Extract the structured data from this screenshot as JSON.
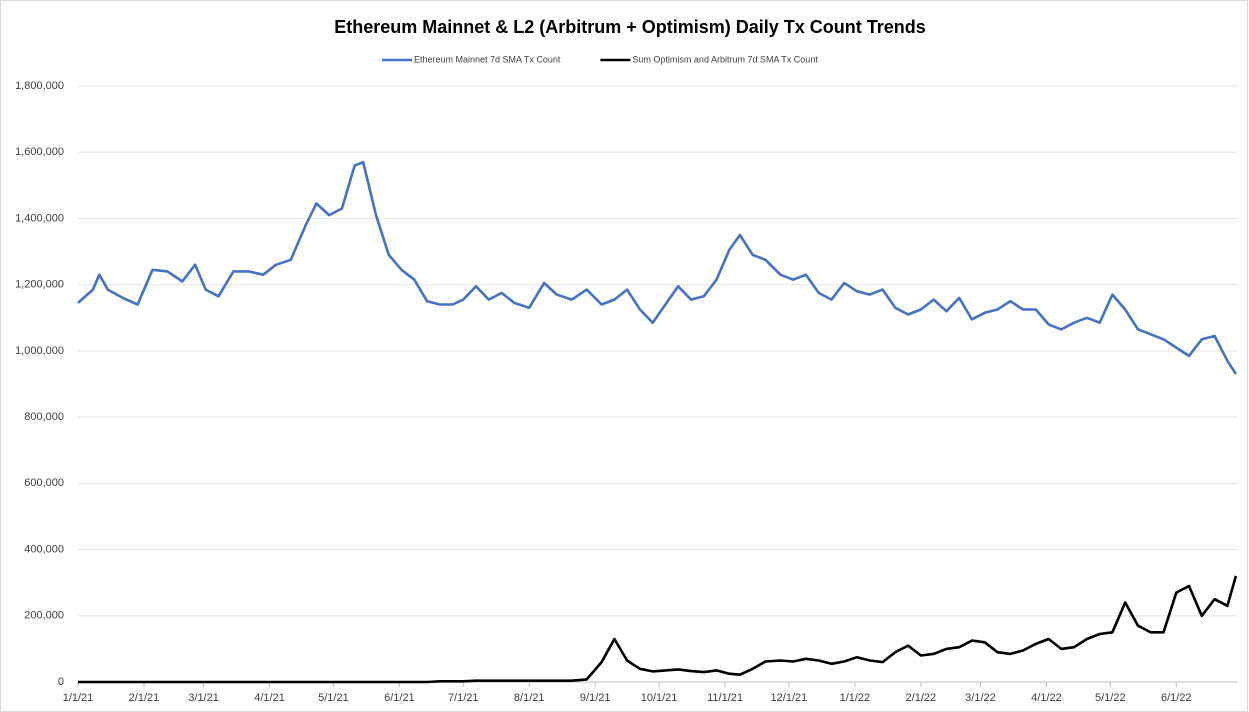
{
  "chart_data": {
    "type": "line",
    "title": "Ethereum Mainnet & L2 (Arbitrum + Optimism) Daily Tx Count Trends",
    "legend": "top",
    "grid": true,
    "xlim": [
      0,
      545
    ],
    "xticks": [
      {
        "value": 0,
        "label": "1/1/21"
      },
      {
        "value": 31,
        "label": "2/1/21"
      },
      {
        "value": 59,
        "label": "3/1/21"
      },
      {
        "value": 90,
        "label": "4/1/21"
      },
      {
        "value": 120,
        "label": "5/1/21"
      },
      {
        "value": 151,
        "label": "6/1/21"
      },
      {
        "value": 181,
        "label": "7/1/21"
      },
      {
        "value": 212,
        "label": "8/1/21"
      },
      {
        "value": 243,
        "label": "9/1/21"
      },
      {
        "value": 273,
        "label": "10/1/21"
      },
      {
        "value": 304,
        "label": "11/1/21"
      },
      {
        "value": 334,
        "label": "12/1/21"
      },
      {
        "value": 365,
        "label": "1/1/22"
      },
      {
        "value": 396,
        "label": "2/1/22"
      },
      {
        "value": 424,
        "label": "3/1/22"
      },
      {
        "value": 455,
        "label": "4/1/22"
      },
      {
        "value": 485,
        "label": "5/1/22"
      },
      {
        "value": 516,
        "label": "6/1/22"
      }
    ],
    "ylim": [
      0,
      1800000
    ],
    "yticks": [
      0,
      {
        "value": 200000,
        "label": "200,000"
      },
      {
        "value": 400000,
        "label": "400,000"
      },
      {
        "value": 600000,
        "label": "600,000"
      },
      {
        "value": 800000,
        "label": "800,000"
      },
      {
        "value": 1000000,
        "label": "1,000,000"
      },
      {
        "value": 1200000,
        "label": "1,200,000"
      },
      {
        "value": 1400000,
        "label": "1,400,000"
      },
      {
        "value": 1600000,
        "label": "1,600,000"
      },
      {
        "value": 1800000,
        "label": "1,800,000"
      }
    ],
    "x": [
      0,
      7,
      10,
      14,
      21,
      28,
      35,
      42,
      49,
      55,
      60,
      66,
      73,
      80,
      87,
      93,
      100,
      107,
      112,
      118,
      124,
      130,
      134,
      140,
      146,
      152,
      158,
      164,
      170,
      176,
      181,
      187,
      193,
      199,
      205,
      212,
      219,
      225,
      232,
      239,
      246,
      252,
      258,
      264,
      270,
      276,
      282,
      288,
      294,
      300,
      306,
      311,
      317,
      323,
      330,
      336,
      342,
      348,
      354,
      360,
      366,
      372,
      378,
      384,
      390,
      396,
      402,
      408,
      414,
      420,
      426,
      432,
      438,
      444,
      450,
      456,
      462,
      468,
      474,
      480,
      486,
      492,
      498,
      504,
      510,
      516,
      522,
      528,
      534,
      540,
      544
    ],
    "series": [
      {
        "name": "Ethereum Mainnet 7d SMA Tx Count",
        "color": "#4472c4",
        "values": [
          1145000,
          1185000,
          1230000,
          1185000,
          1160000,
          1140000,
          1245000,
          1240000,
          1210000,
          1260000,
          1185000,
          1165000,
          1240000,
          1240000,
          1230000,
          1260000,
          1275000,
          1380000,
          1445000,
          1410000,
          1430000,
          1560000,
          1570000,
          1410000,
          1290000,
          1245000,
          1215000,
          1150000,
          1140000,
          1140000,
          1155000,
          1195000,
          1155000,
          1175000,
          1145000,
          1130000,
          1205000,
          1170000,
          1155000,
          1185000,
          1140000,
          1155000,
          1185000,
          1125000,
          1085000,
          1140000,
          1195000,
          1155000,
          1165000,
          1215000,
          1305000,
          1350000,
          1290000,
          1275000,
          1230000,
          1215000,
          1230000,
          1175000,
          1155000,
          1205000,
          1180000,
          1170000,
          1185000,
          1130000,
          1110000,
          1125000,
          1155000,
          1120000,
          1160000,
          1095000,
          1115000,
          1125000,
          1150000,
          1125000,
          1125000,
          1080000,
          1065000,
          1085000,
          1100000,
          1085000,
          1170000,
          1125000,
          1065000,
          1050000,
          1035000,
          1010000,
          985000,
          1035000,
          1045000,
          970000,
          930000
        ]
      },
      {
        "name": "Sum Optimism and Arbitrum 7d SMA Tx Count",
        "color": "#000000",
        "values": [
          0,
          0,
          0,
          0,
          0,
          0,
          0,
          0,
          0,
          0,
          0,
          0,
          0,
          0,
          0,
          0,
          0,
          0,
          0,
          0,
          0,
          0,
          0,
          0,
          0,
          0,
          0,
          0,
          2000,
          2000,
          2000,
          4000,
          4000,
          4000,
          4000,
          4000,
          4000,
          4000,
          4000,
          8000,
          60000,
          130000,
          65000,
          40000,
          32000,
          35000,
          38000,
          33000,
          30000,
          35000,
          25000,
          22000,
          40000,
          62000,
          65000,
          62000,
          70000,
          65000,
          55000,
          62000,
          75000,
          65000,
          60000,
          90000,
          110000,
          80000,
          85000,
          100000,
          105000,
          125000,
          120000,
          90000,
          85000,
          95000,
          115000,
          130000,
          100000,
          105000,
          130000,
          145000,
          150000,
          240000,
          170000,
          150000,
          150000,
          270000,
          290000,
          200000,
          250000,
          230000,
          320000
        ]
      }
    ]
  }
}
